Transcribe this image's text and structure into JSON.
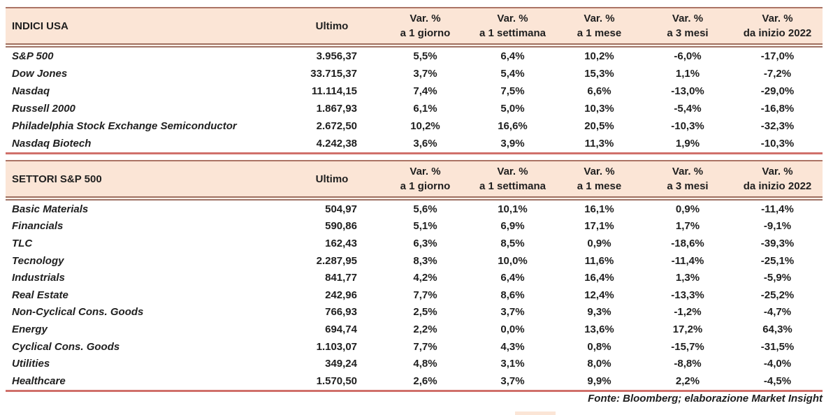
{
  "colors": {
    "header_background": "#fbe5d6",
    "header_border": "#ab7465",
    "table_end_line": "#d0706a",
    "text": "#1f1f1f"
  },
  "columns": {
    "ultimo": "Ultimo",
    "var_top": "Var. %",
    "var_periods": [
      "a 1 giorno",
      "a 1 settimana",
      "a 1 mese",
      "a 3 mesi",
      "da inizio 2022"
    ]
  },
  "tables": [
    {
      "title": "INDICI USA",
      "rows": [
        {
          "label": "S&P 500",
          "ultimo": "3.956,37",
          "d1": "5,5%",
          "w1": "6,4%",
          "m1": "10,2%",
          "m3": "-6,0%",
          "ytd": "-17,0%"
        },
        {
          "label": "Dow Jones",
          "ultimo": "33.715,37",
          "d1": "3,7%",
          "w1": "5,4%",
          "m1": "15,3%",
          "m3": "1,1%",
          "ytd": "-7,2%"
        },
        {
          "label": "Nasdaq",
          "ultimo": "11.114,15",
          "d1": "7,4%",
          "w1": "7,5%",
          "m1": "6,6%",
          "m3": "-13,0%",
          "ytd": "-29,0%"
        },
        {
          "label": "Russell 2000",
          "ultimo": "1.867,93",
          "d1": "6,1%",
          "w1": "5,0%",
          "m1": "10,3%",
          "m3": "-5,4%",
          "ytd": "-16,8%"
        },
        {
          "label": "Philadelphia Stock Exchange Semiconductor",
          "ultimo": "2.672,50",
          "d1": "10,2%",
          "w1": "16,6%",
          "m1": "20,5%",
          "m3": "-10,3%",
          "ytd": "-32,3%"
        },
        {
          "label": "Nasdaq Biotech",
          "ultimo": "4.242,38",
          "d1": "3,6%",
          "w1": "3,9%",
          "m1": "11,3%",
          "m3": "1,9%",
          "ytd": "-10,3%"
        }
      ]
    },
    {
      "title": "SETTORI S&P 500",
      "rows": [
        {
          "label": "Basic Materials",
          "ultimo": "504,97",
          "d1": "5,6%",
          "w1": "10,1%",
          "m1": "16,1%",
          "m3": "0,9%",
          "ytd": "-11,4%"
        },
        {
          "label": "Financials",
          "ultimo": "590,86",
          "d1": "5,1%",
          "w1": "6,9%",
          "m1": "17,1%",
          "m3": "1,7%",
          "ytd": "-9,1%"
        },
        {
          "label": "TLC",
          "ultimo": "162,43",
          "d1": "6,3%",
          "w1": "8,5%",
          "m1": "0,9%",
          "m3": "-18,6%",
          "ytd": "-39,3%"
        },
        {
          "label": "Tecnology",
          "ultimo": "2.287,95",
          "d1": "8,3%",
          "w1": "10,0%",
          "m1": "11,6%",
          "m3": "-11,4%",
          "ytd": "-25,1%"
        },
        {
          "label": "Industrials",
          "ultimo": "841,77",
          "d1": "4,2%",
          "w1": "6,4%",
          "m1": "16,4%",
          "m3": "1,3%",
          "ytd": "-5,9%"
        },
        {
          "label": "Real Estate",
          "ultimo": "242,96",
          "d1": "7,7%",
          "w1": "8,6%",
          "m1": "12,4%",
          "m3": "-13,3%",
          "ytd": "-25,2%"
        },
        {
          "label": "Non-Cyclical Cons. Goods",
          "ultimo": "766,93",
          "d1": "2,5%",
          "w1": "3,7%",
          "m1": "9,3%",
          "m3": "-1,2%",
          "ytd": "-4,7%"
        },
        {
          "label": "Energy",
          "ultimo": "694,74",
          "d1": "2,2%",
          "w1": "0,0%",
          "m1": "13,6%",
          "m3": "17,2%",
          "ytd": "64,3%"
        },
        {
          "label": "Cyclical Cons. Goods",
          "ultimo": "1.103,07",
          "d1": "7,7%",
          "w1": "4,3%",
          "m1": "0,8%",
          "m3": "-15,7%",
          "ytd": "-31,5%"
        },
        {
          "label": "Utilities",
          "ultimo": "349,24",
          "d1": "4,8%",
          "w1": "3,1%",
          "m1": "8,0%",
          "m3": "-8,8%",
          "ytd": "-4,0%"
        },
        {
          "label": "Healthcare",
          "ultimo": "1.570,50",
          "d1": "2,6%",
          "w1": "3,7%",
          "m1": "9,9%",
          "m3": "2,2%",
          "ytd": "-4,5%"
        }
      ]
    }
  ],
  "footer": {
    "source": "Fonte: Bloomberg; elaborazione Market Insight"
  }
}
